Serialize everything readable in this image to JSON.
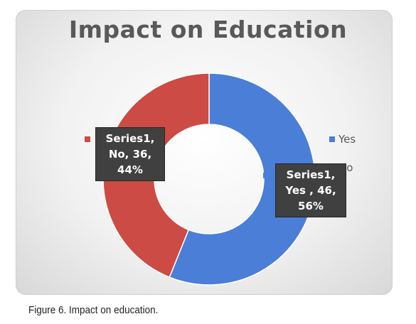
{
  "chart_data": {
    "type": "pie",
    "donut": true,
    "title": "Impact on Education",
    "series_name": "Series1",
    "categories": [
      "Yes",
      "No"
    ],
    "values": [
      46,
      36
    ],
    "percents": [
      "56%",
      "44%"
    ],
    "colors": [
      "#4a7ed7",
      "#cc4b44"
    ],
    "legend": {
      "position": "right",
      "entries": [
        "Yes",
        "No"
      ]
    },
    "data_labels": [
      {
        "lines": [
          "Series1,",
          "Yes , 46,",
          "56%"
        ]
      },
      {
        "lines": [
          "Series1,",
          "No, 36,",
          "44%"
        ]
      }
    ]
  },
  "caption": {
    "prefix": "Figure 6.",
    "text": " Impact on education."
  }
}
